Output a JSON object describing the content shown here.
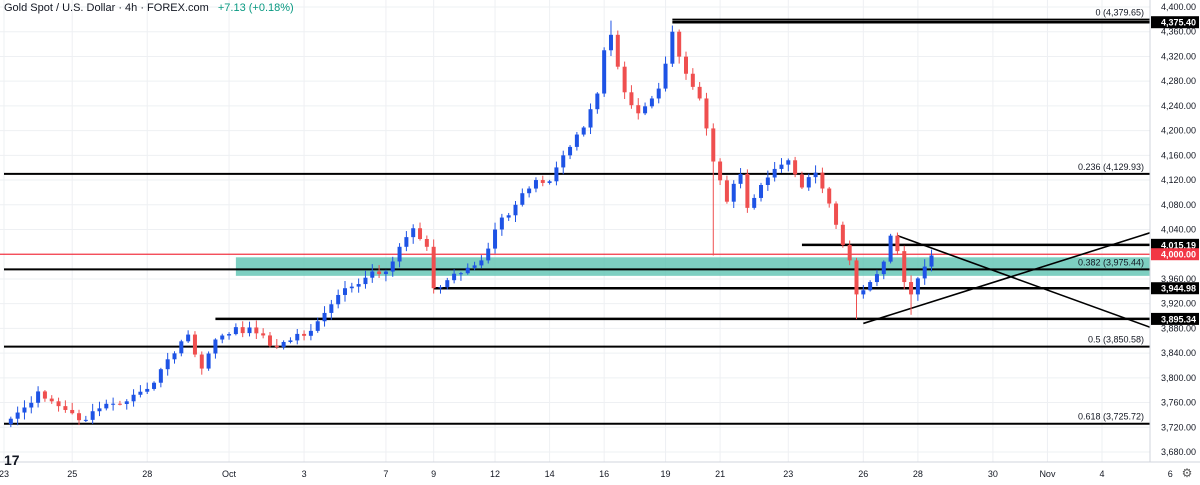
{
  "header": {
    "symbol": "Gold Spot / U.S. Dollar · 4h · FOREX.com",
    "change": "+7.13 (+0.18%)",
    "logo": "17"
  },
  "colors": {
    "up": "#1e53e5",
    "down": "#ef4f4f",
    "grid": "#eef0f3",
    "zone": "#5cc3b1",
    "red_line": "#f23645",
    "black": "#000000"
  },
  "chart_data": {
    "type": "candlestick",
    "title": "Gold Spot / U.S. Dollar · 4h · FOREX.com",
    "ylim": [
      3680,
      4400
    ],
    "y_ticks": [
      "4,400.00",
      "4,360.00",
      "4,320.00",
      "4,280.00",
      "4,240.00",
      "4,200.00",
      "4,160.00",
      "4,120.00",
      "4,080.00",
      "4,040.00",
      "3,960.00",
      "3,920.00",
      "3,880.00",
      "3,840.00",
      "3,800.00",
      "3,760.00",
      "3,720.00",
      "3,680.00"
    ],
    "y_tick_values": [
      4400,
      4360,
      4320,
      4280,
      4240,
      4200,
      4160,
      4120,
      4080,
      4040,
      3960,
      3920,
      3880,
      3840,
      3800,
      3760,
      3720,
      3680
    ],
    "x_ticks": [
      "23",
      "25",
      "28",
      "Oct",
      "3",
      "7",
      "9",
      "12",
      "14",
      "16",
      "19",
      "21",
      "23",
      "26",
      "28",
      "30",
      "Nov",
      "4",
      "6"
    ],
    "x_tick_index": [
      0,
      10,
      21,
      33,
      44,
      56,
      63,
      72,
      80,
      88,
      97,
      105,
      115,
      126,
      134,
      145,
      153,
      161,
      171
    ],
    "candle_anchors": [
      [
        0,
        3725
      ],
      [
        3,
        3752
      ],
      [
        5,
        3778
      ],
      [
        7,
        3762
      ],
      [
        9,
        3748
      ],
      [
        12,
        3732
      ],
      [
        15,
        3758
      ],
      [
        18,
        3762
      ],
      [
        21,
        3782
      ],
      [
        24,
        3830
      ],
      [
        27,
        3870
      ],
      [
        29,
        3815
      ],
      [
        31,
        3862
      ],
      [
        34,
        3882
      ],
      [
        37,
        3872
      ],
      [
        39,
        3852
      ],
      [
        41,
        3858
      ],
      [
        44,
        3868
      ],
      [
        47,
        3905
      ],
      [
        50,
        3945
      ],
      [
        53,
        3962
      ],
      [
        56,
        3972
      ],
      [
        58,
        4012
      ],
      [
        60,
        4042
      ],
      [
        62,
        4012
      ],
      [
        63,
        3945
      ],
      [
        65,
        3958
      ],
      [
        68,
        3978
      ],
      [
        70,
        3990
      ],
      [
        72,
        4040
      ],
      [
        75,
        4080
      ],
      [
        78,
        4120
      ],
      [
        80,
        4118
      ],
      [
        82,
        4160
      ],
      [
        85,
        4205
      ],
      [
        87,
        4260
      ],
      [
        88,
        4330
      ],
      [
        89,
        4355
      ],
      [
        91,
        4262
      ],
      [
        93,
        4228
      ],
      [
        95,
        4252
      ],
      [
        96,
        4268
      ],
      [
        98,
        4360
      ],
      [
        100,
        4292
      ],
      [
        102,
        4252
      ],
      [
        104,
        4150
      ],
      [
        106,
        4085
      ],
      [
        108,
        4130
      ],
      [
        109,
        4075
      ],
      [
        111,
        4112
      ],
      [
        113,
        4138
      ],
      [
        115,
        4152
      ],
      [
        117,
        4108
      ],
      [
        119,
        4132
      ],
      [
        121,
        4082
      ],
      [
        123,
        4015
      ],
      [
        124,
        3990
      ],
      [
        125,
        3935
      ],
      [
        127,
        3955
      ],
      [
        129,
        3988
      ],
      [
        130,
        4030
      ],
      [
        131,
        4005
      ],
      [
        132,
        3955
      ],
      [
        133,
        3935
      ],
      [
        135,
        3980
      ],
      [
        136,
        3998
      ]
    ],
    "anchor_wicks": [
      [
        89,
        4378
      ],
      [
        98,
        4370
      ],
      [
        104,
        3998
      ],
      [
        125,
        3895
      ],
      [
        133,
        3902
      ]
    ],
    "levels": [
      {
        "label": "0 (4,379.65)",
        "value": 4379.65,
        "start_index": 98
      },
      {
        "label": "0.236 (4,129.93)",
        "value": 4129.93,
        "start_index": 0
      },
      {
        "label": "0.382 (3,975.44)",
        "value": 3975.44,
        "start_index": 0
      },
      {
        "label": "0.5 (3,850.58)",
        "value": 3850.58,
        "start_index": 0
      },
      {
        "label": "0.618 (3,725.72)",
        "value": 3725.72,
        "start_index": 0
      }
    ],
    "horizontal_lines": [
      {
        "price_label": "4,375.40",
        "value": 4375.4,
        "start_index": 98
      },
      {
        "price_label": "4,015.19",
        "value": 4015.19,
        "start_index": 117
      },
      {
        "price_label": "3,944.98",
        "value": 3944.98,
        "start_index": 63
      },
      {
        "price_label": "3,895.34",
        "value": 3895.34,
        "start_index": 31
      }
    ],
    "current_price": {
      "label": "4,000.00",
      "value": 4000.0
    },
    "zone": {
      "from": 3965,
      "to": 3995,
      "start_index": 34
    },
    "trend_lines": [
      {
        "from": [
          126,
          3888
        ],
        "to": [
          171,
          4045
        ]
      },
      {
        "from": [
          131,
          4030
        ],
        "to": [
          171,
          3870
        ]
      }
    ]
  }
}
